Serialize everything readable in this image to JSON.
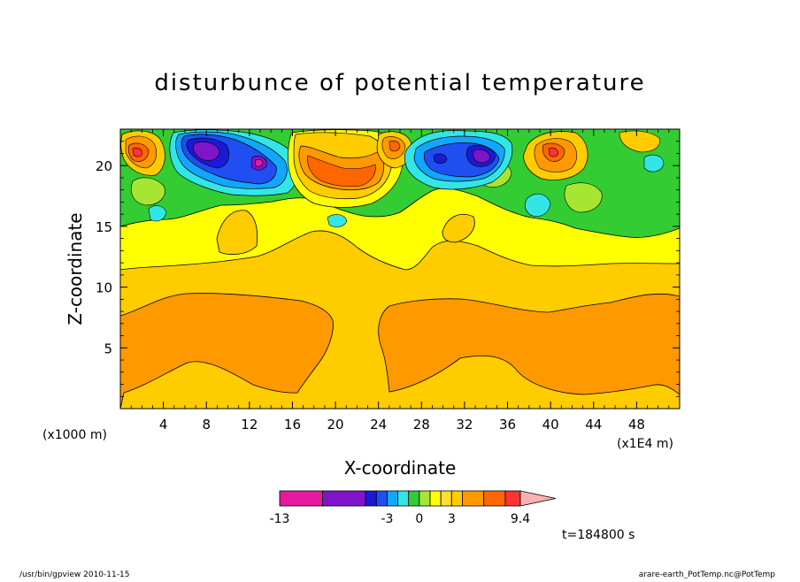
{
  "chart_data": {
    "type": "heatmap",
    "title": "disturbunce of potential temperature",
    "xlabel": "X-coordinate",
    "ylabel": "Z-coordinate",
    "x_unit_note": "(x1000 m)",
    "x_scale_note": "(x1E4 m)",
    "xlim": [
      0,
      52
    ],
    "ylim": [
      0,
      23
    ],
    "x_ticks": [
      4,
      8,
      12,
      16,
      20,
      24,
      28,
      32,
      36,
      40,
      44,
      48
    ],
    "x_tick_labels": [
      "4",
      "8",
      "12",
      "16",
      "20",
      "24",
      "28",
      "32",
      "36",
      "40",
      "44",
      "48"
    ],
    "y_ticks": [
      5,
      10,
      15,
      20
    ],
    "y_tick_labels": [
      "5",
      "10",
      "15",
      "20"
    ],
    "colorbar": {
      "labels": [
        {
          "text": "-13",
          "value": -13
        },
        {
          "text": "-3",
          "value": -3
        },
        {
          "text": "0",
          "value": 0
        },
        {
          "text": "3",
          "value": 3
        },
        {
          "text": "9.4",
          "value": 9.4
        }
      ],
      "levels": [
        -13,
        -9,
        -5,
        -4,
        -3,
        -2,
        -1,
        0,
        1,
        2,
        3,
        4,
        6,
        8,
        9.4
      ],
      "colors": [
        "#e6199f",
        "#7f14c8",
        "#1a1ad6",
        "#1f4ff0",
        "#12a6ff",
        "#33e6e6",
        "#33cc33",
        "#a6e633",
        "#ffff00",
        "#ffdd33",
        "#ffcc00",
        "#ff9900",
        "#ff6600",
        "#ff3333",
        "#ff8080",
        "#ffb0b0"
      ],
      "overflow_arrow": true
    },
    "annotation": "t=184800 s",
    "layer_colors": {
      "background": "#ffcc00",
      "lower": "#ff9900",
      "upper": "#ffff00",
      "green": "#33cc33",
      "cyan": "#33e6e6",
      "lightblue": "#12a6ff",
      "blue": "#1f4ff0",
      "darkblue": "#1a1ad6",
      "purple": "#7f14c8",
      "magenta": "#e6199f",
      "orange": "#ff6600",
      "red": "#ff3333",
      "pink": "#ff8080"
    }
  },
  "footer": {
    "left": "/usr/bin/gpview  2010-11-15",
    "right": "arare-earth_PotTemp.nc@PotTemp"
  }
}
